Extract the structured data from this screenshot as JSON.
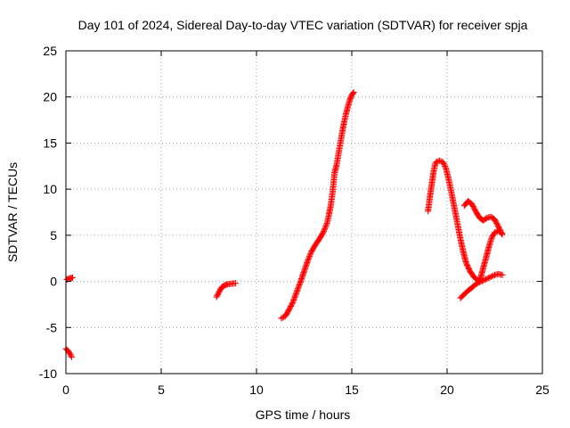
{
  "chart_data": {
    "type": "scatter",
    "title": "Day 101 of 2024, Sidereal Day-to-day VTEC variation (SDTVAR) for receiver spja",
    "xlabel": "GPS time / hours",
    "ylabel": "SDTVAR / TECUs",
    "xlim": [
      0,
      25
    ],
    "ylim": [
      -10,
      25
    ],
    "xticks": [
      "0",
      "5",
      "10",
      "15",
      "20",
      "25"
    ],
    "yticks": [
      "-10",
      "-5",
      "0",
      "5",
      "10",
      "15",
      "20",
      "25"
    ],
    "grid": true,
    "marker": "+",
    "color": "#ff0000",
    "series": [
      {
        "name": "",
        "segments": [
          [
            [
              0.0,
              -7.3
            ],
            [
              0.1,
              -7.5
            ],
            [
              0.2,
              -7.8
            ],
            [
              0.3,
              -8.2
            ]
          ],
          [
            [
              0.05,
              0.2
            ],
            [
              0.15,
              0.3
            ],
            [
              0.25,
              0.35
            ],
            [
              0.35,
              0.4
            ]
          ],
          [
            [
              7.9,
              -1.7
            ],
            [
              8.0,
              -1.3
            ],
            [
              8.1,
              -0.9
            ],
            [
              8.2,
              -0.6
            ],
            [
              8.35,
              -0.4
            ],
            [
              8.5,
              -0.3
            ],
            [
              8.7,
              -0.25
            ],
            [
              8.9,
              -0.2
            ]
          ],
          [
            [
              11.3,
              -4.0
            ],
            [
              11.5,
              -3.8
            ],
            [
              11.7,
              -3.1
            ],
            [
              11.9,
              -2.3
            ],
            [
              12.1,
              -1.2
            ],
            [
              12.3,
              -0.1
            ],
            [
              12.5,
              1.1
            ],
            [
              12.7,
              2.3
            ],
            [
              12.9,
              3.3
            ],
            [
              13.1,
              4.0
            ],
            [
              13.3,
              4.6
            ],
            [
              13.5,
              5.3
            ],
            [
              13.7,
              6.3
            ],
            [
              13.8,
              7.2
            ],
            [
              13.9,
              8.3
            ],
            [
              14.0,
              9.8
            ],
            [
              14.1,
              11.8
            ],
            [
              14.2,
              12.6
            ],
            [
              14.3,
              13.8
            ],
            [
              14.4,
              15.0
            ],
            [
              14.5,
              16.2
            ],
            [
              14.6,
              17.3
            ],
            [
              14.7,
              18.2
            ],
            [
              14.8,
              19.0
            ],
            [
              14.9,
              19.7
            ],
            [
              15.0,
              20.2
            ],
            [
              15.1,
              20.5
            ]
          ],
          [
            [
              19.0,
              7.6
            ],
            [
              19.1,
              9.2
            ],
            [
              19.2,
              10.6
            ],
            [
              19.3,
              12.0
            ],
            [
              19.4,
              12.9
            ],
            [
              19.6,
              13.1
            ],
            [
              19.8,
              12.9
            ],
            [
              19.95,
              12.2
            ],
            [
              20.1,
              10.9
            ],
            [
              20.25,
              9.4
            ],
            [
              20.4,
              7.8
            ],
            [
              20.55,
              6.2
            ],
            [
              20.7,
              4.6
            ],
            [
              20.85,
              3.2
            ],
            [
              21.0,
              2.0
            ],
            [
              21.2,
              1.1
            ],
            [
              21.4,
              0.5
            ],
            [
              21.6,
              0.1
            ],
            [
              21.75,
              0.3
            ],
            [
              21.9,
              1.5
            ],
            [
              22.05,
              2.6
            ],
            [
              22.2,
              3.8
            ],
            [
              22.35,
              4.8
            ],
            [
              22.5,
              5.3
            ],
            [
              22.7,
              5.5
            ],
            [
              22.9,
              5.1
            ]
          ],
          [
            [
              20.9,
              8.2
            ],
            [
              21.1,
              8.7
            ],
            [
              21.3,
              8.4
            ],
            [
              21.5,
              7.6
            ],
            [
              21.7,
              6.9
            ],
            [
              21.9,
              6.6
            ],
            [
              22.1,
              6.9
            ],
            [
              22.3,
              7.0
            ],
            [
              22.5,
              6.7
            ],
            [
              22.7,
              5.9
            ],
            [
              22.9,
              5.1
            ]
          ],
          [
            [
              20.7,
              -1.8
            ],
            [
              20.9,
              -1.4
            ],
            [
              21.1,
              -1.0
            ],
            [
              21.3,
              -0.7
            ],
            [
              21.5,
              -0.3
            ],
            [
              21.7,
              -0.1
            ],
            [
              21.9,
              0.1
            ],
            [
              22.1,
              0.3
            ],
            [
              22.3,
              0.5
            ],
            [
              22.5,
              0.7
            ],
            [
              22.7,
              0.8
            ],
            [
              22.9,
              0.7
            ]
          ]
        ]
      }
    ]
  }
}
